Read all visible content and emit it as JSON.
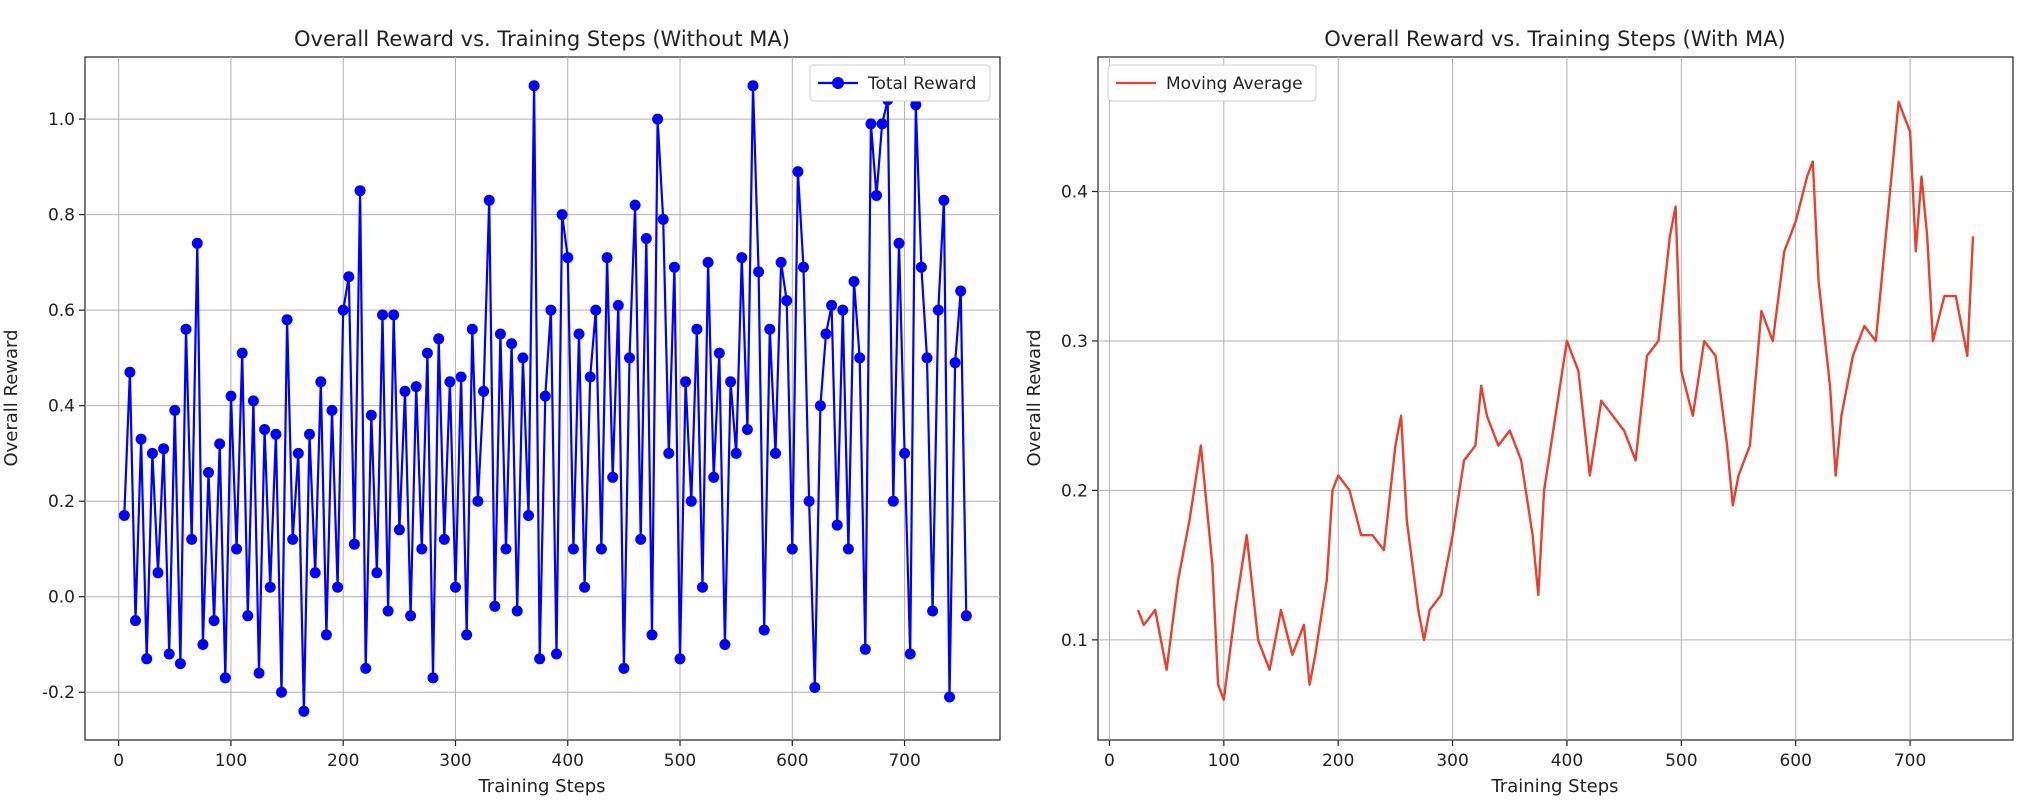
{
  "chart_data": [
    {
      "type": "line",
      "title": "Overall Reward vs. Training Steps (Without MA)",
      "xlabel": "Training Steps",
      "ylabel": "Overall Reward",
      "xlim": [
        -30,
        785
      ],
      "ylim": [
        -0.3,
        1.13
      ],
      "xticks": [
        0,
        100,
        200,
        300,
        400,
        500,
        600,
        700
      ],
      "yticks": [
        -0.2,
        0.0,
        0.2,
        0.4,
        0.6,
        0.8,
        1.0
      ],
      "grid": true,
      "legend": {
        "position": "top-right"
      },
      "colors": {
        "series": "#0000ff"
      },
      "series": [
        {
          "name": "Total Reward",
          "marker": "circle",
          "x": [
            5,
            10,
            15,
            20,
            25,
            30,
            35,
            40,
            45,
            50,
            55,
            60,
            65,
            70,
            75,
            80,
            85,
            90,
            95,
            100,
            105,
            110,
            115,
            120,
            125,
            130,
            135,
            140,
            145,
            150,
            155,
            160,
            165,
            170,
            175,
            180,
            185,
            190,
            195,
            200,
            205,
            210,
            215,
            220,
            225,
            230,
            235,
            240,
            245,
            250,
            255,
            260,
            265,
            270,
            275,
            280,
            285,
            290,
            295,
            300,
            305,
            310,
            315,
            320,
            325,
            330,
            335,
            340,
            345,
            350,
            355,
            360,
            365,
            370,
            375,
            380,
            385,
            390,
            395,
            400,
            405,
            410,
            415,
            420,
            425,
            430,
            435,
            440,
            445,
            450,
            455,
            460,
            465,
            470,
            475,
            480,
            485,
            490,
            495,
            500,
            505,
            510,
            515,
            520,
            525,
            530,
            535,
            540,
            545,
            550,
            555,
            560,
            565,
            570,
            575,
            580,
            585,
            590,
            595,
            600,
            605,
            610,
            615,
            620,
            625,
            630,
            635,
            640,
            645,
            650,
            655,
            660,
            665,
            670,
            675,
            680,
            685,
            690,
            695,
            700,
            705,
            710,
            715,
            720,
            725,
            730,
            735,
            740,
            745,
            750,
            755
          ],
          "y": [
            0.17,
            0.47,
            -0.05,
            0.33,
            -0.13,
            0.3,
            0.05,
            0.31,
            -0.12,
            0.39,
            -0.14,
            0.56,
            0.12,
            0.74,
            -0.1,
            0.26,
            -0.05,
            0.32,
            -0.17,
            0.42,
            0.1,
            0.51,
            -0.04,
            0.41,
            -0.16,
            0.35,
            0.02,
            0.34,
            -0.2,
            0.58,
            0.12,
            0.3,
            -0.24,
            0.34,
            0.05,
            0.45,
            -0.08,
            0.39,
            0.02,
            0.6,
            0.67,
            0.11,
            0.85,
            -0.15,
            0.38,
            0.05,
            0.59,
            -0.03,
            0.59,
            0.14,
            0.43,
            -0.04,
            0.44,
            0.1,
            0.51,
            -0.17,
            0.54,
            0.12,
            0.45,
            0.02,
            0.46,
            -0.08,
            0.56,
            0.2,
            0.43,
            0.83,
            -0.02,
            0.55,
            0.1,
            0.53,
            -0.03,
            0.5,
            0.17,
            1.07,
            -0.13,
            0.42,
            0.6,
            -0.12,
            0.8,
            0.71,
            0.1,
            0.55,
            0.02,
            0.46,
            0.6,
            0.1,
            0.71,
            0.25,
            0.61,
            -0.15,
            0.5,
            0.82,
            0.12,
            0.75,
            -0.08,
            1.0,
            0.79,
            0.3,
            0.69,
            -0.13,
            0.45,
            0.2,
            0.56,
            0.02,
            0.7,
            0.25,
            0.51,
            -0.1,
            0.45,
            0.3,
            0.71,
            0.35,
            1.07,
            0.68,
            -0.07,
            0.56,
            0.3,
            0.7,
            0.62,
            0.1,
            0.89,
            0.69,
            0.2,
            -0.19,
            0.4,
            0.55,
            0.61,
            0.15,
            0.6,
            0.1,
            0.66,
            0.5,
            -0.11,
            0.99,
            0.84,
            0.99,
            1.04,
            0.2,
            0.74,
            0.3,
            -0.12,
            1.03,
            0.69,
            0.5,
            -0.03,
            0.6,
            0.83,
            -0.21,
            0.49,
            0.64,
            -0.04
          ]
        }
      ]
    },
    {
      "type": "line",
      "title": "Overall Reward vs. Training Steps (With MA)",
      "xlabel": "Training Steps",
      "ylabel": "Overall Reward",
      "xlim": [
        -10,
        790
      ],
      "ylim": [
        0.033,
        0.49
      ],
      "xticks": [
        0,
        100,
        200,
        300,
        400,
        500,
        600,
        700
      ],
      "yticks": [
        0.1,
        0.2,
        0.3,
        0.4
      ],
      "grid": true,
      "legend": {
        "position": "top-left"
      },
      "colors": {
        "series": "#e8402f"
      },
      "series": [
        {
          "name": "Moving Average",
          "marker": "none",
          "x": [
            25,
            30,
            40,
            50,
            60,
            70,
            80,
            90,
            95,
            100,
            110,
            120,
            130,
            140,
            150,
            160,
            170,
            175,
            180,
            190,
            195,
            200,
            210,
            220,
            230,
            240,
            250,
            255,
            260,
            270,
            275,
            280,
            290,
            300,
            310,
            320,
            325,
            330,
            340,
            350,
            360,
            370,
            375,
            380,
            390,
            400,
            410,
            420,
            430,
            440,
            450,
            460,
            470,
            480,
            490,
            495,
            500,
            510,
            520,
            530,
            540,
            545,
            550,
            560,
            570,
            580,
            590,
            600,
            610,
            615,
            620,
            630,
            635,
            640,
            650,
            660,
            670,
            680,
            690,
            700,
            705,
            710,
            715,
            720,
            730,
            740,
            750,
            755
          ],
          "y": [
            0.12,
            0.11,
            0.12,
            0.08,
            0.14,
            0.18,
            0.23,
            0.15,
            0.07,
            0.06,
            0.12,
            0.17,
            0.1,
            0.08,
            0.12,
            0.09,
            0.11,
            0.07,
            0.09,
            0.14,
            0.2,
            0.21,
            0.2,
            0.17,
            0.17,
            0.16,
            0.23,
            0.25,
            0.18,
            0.12,
            0.1,
            0.12,
            0.13,
            0.17,
            0.22,
            0.23,
            0.27,
            0.25,
            0.23,
            0.24,
            0.22,
            0.17,
            0.13,
            0.2,
            0.25,
            0.3,
            0.28,
            0.21,
            0.26,
            0.25,
            0.24,
            0.22,
            0.29,
            0.3,
            0.37,
            0.39,
            0.28,
            0.25,
            0.3,
            0.29,
            0.23,
            0.19,
            0.21,
            0.23,
            0.32,
            0.3,
            0.36,
            0.38,
            0.41,
            0.42,
            0.34,
            0.27,
            0.21,
            0.25,
            0.29,
            0.31,
            0.3,
            0.38,
            0.46,
            0.44,
            0.36,
            0.41,
            0.37,
            0.3,
            0.33,
            0.33,
            0.29,
            0.37
          ]
        }
      ]
    }
  ]
}
